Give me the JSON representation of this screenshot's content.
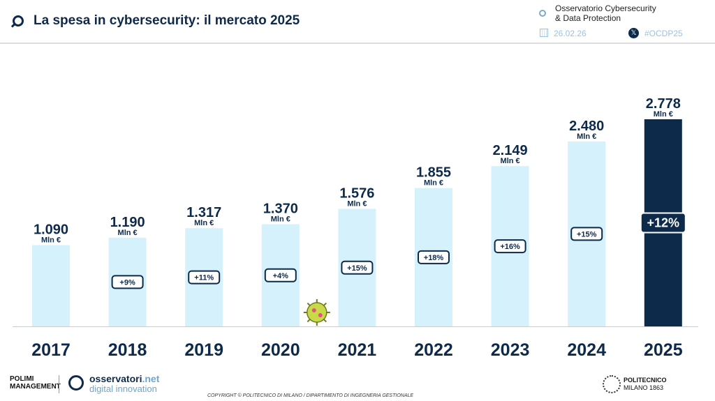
{
  "header": {
    "title": "La spesa in cybersecurity: il mercato 2025",
    "observatory": "Osservatorio Cybersecurity",
    "observatory2": "& Data Protection",
    "date": "26.02.26",
    "hashtag": "#OCDP25",
    "icons": [
      "magnifier-logo-icon",
      "calendar-icon",
      "x-logo-icon"
    ]
  },
  "chart_data": {
    "type": "bar",
    "categories": [
      "2017",
      "2018",
      "2019",
      "2020",
      "2021",
      "2022",
      "2023",
      "2024",
      "2025"
    ],
    "values": [
      1090,
      1190,
      1317,
      1370,
      1576,
      1855,
      2149,
      2480,
      2778
    ],
    "value_labels": [
      "1.090",
      "1.190",
      "1.317",
      "1.370",
      "1.576",
      "1.855",
      "2.149",
      "2.480",
      "2.778"
    ],
    "unit": "Mln €",
    "growth_labels": [
      null,
      "+9%",
      "+11%",
      "+4%",
      "+15%",
      "+18%",
      "+16%",
      "+15%",
      "+12%"
    ],
    "ylim": [
      0,
      2778
    ],
    "grid": false,
    "colors": {
      "bar": "#d4f1fc",
      "highlight": "#0d2a4a",
      "text": "#0d2a4a"
    },
    "annotation": "virus-icon at 2020"
  },
  "footer": {
    "copyright": "COPYRIGHT © POLITECNICO DI MILANO / DIPARTIMENTO DI INGEGNERIA GESTIONALE",
    "polimi1": "POLIMI",
    "polimi2": "MANAGEMENT",
    "oss1": "osservatori",
    "oss1b": ".net",
    "oss2": "digital innovation",
    "poli1": "POLITECNICO",
    "poli2": "MILANO 1863"
  }
}
